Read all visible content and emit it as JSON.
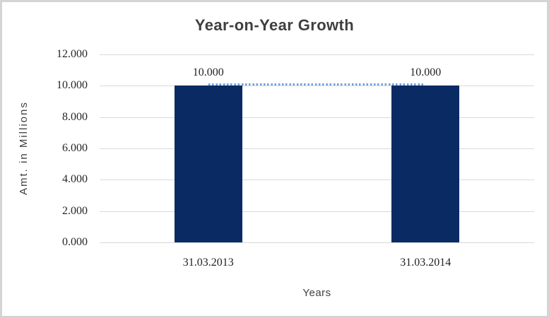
{
  "chart_data": {
    "type": "bar",
    "title": "Year-on-Year Growth",
    "xlabel": "Years",
    "ylabel": "Amt. in Millions",
    "categories": [
      "31.03.2013",
      "31.03.2014"
    ],
    "values": [
      10.0,
      10.0
    ],
    "data_labels": [
      "10.000",
      "10.000"
    ],
    "ylim": [
      0,
      12
    ],
    "yticks": [
      0,
      2,
      4,
      6,
      8,
      10,
      12
    ],
    "ytick_labels": [
      "0.000",
      "2.000",
      "4.000",
      "6.000",
      "8.000",
      "10.000",
      "12.000"
    ],
    "grid": "horizontal",
    "legend_position": "none",
    "bar_color": "#0a2a63",
    "gridline_color": "#d9d9d9",
    "title_color": "#3f3f3f",
    "trendline": {
      "style": "dotted",
      "color": "#6f9fd8",
      "start_value": 10.0,
      "end_value": 10.0
    }
  }
}
